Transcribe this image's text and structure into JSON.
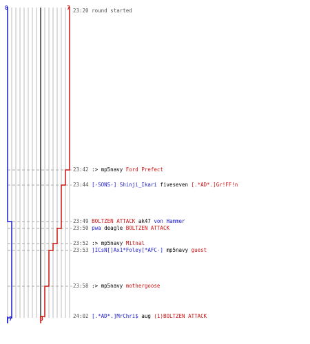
{
  "colors": {
    "blue": "#1a1acc",
    "red": "#cc1111",
    "gray": "#555555",
    "black": "#000000",
    "grid": "#bbbbbb",
    "dash": "#aaaaaa",
    "time": "#555555"
  },
  "scores": {
    "blue_start": "8",
    "red_start": "7",
    "blue_end": "7",
    "red_end": "0"
  },
  "events": [
    {
      "time": "23:20",
      "parts": [
        {
          "t": " round started",
          "c": "gray"
        }
      ]
    },
    {
      "time": "23:42",
      "parts": [
        {
          "t": " :> ",
          "c": "black"
        },
        {
          "t": "mp5navy ",
          "c": "black"
        },
        {
          "t": "Ford Prefect",
          "c": "red"
        }
      ]
    },
    {
      "time": "23:44",
      "parts": [
        {
          "t": " [-SONS-] Shinji_Ikari",
          "c": "blue"
        },
        {
          "t": " fiveseven ",
          "c": "black"
        },
        {
          "t": "[.*AD*.]Gr!FF!n",
          "c": "red"
        }
      ]
    },
    {
      "time": "23:49",
      "parts": [
        {
          "t": " BOLTZEN ATTACK",
          "c": "red"
        },
        {
          "t": " ak47 ",
          "c": "black"
        },
        {
          "t": "von Hammer",
          "c": "blue"
        }
      ]
    },
    {
      "time": "23:50",
      "parts": [
        {
          "t": " pwa",
          "c": "blue"
        },
        {
          "t": " deagle ",
          "c": "black"
        },
        {
          "t": "BOLTZEN ATTACK",
          "c": "red"
        }
      ]
    },
    {
      "time": "23:52",
      "parts": [
        {
          "t": " :> ",
          "c": "black"
        },
        {
          "t": "mp5navy ",
          "c": "black"
        },
        {
          "t": "Mitnal",
          "c": "red"
        }
      ]
    },
    {
      "time": "23:53",
      "parts": [
        {
          "t": " ]ICsN[]Ax1*Foley[*AFC-]",
          "c": "blue"
        },
        {
          "t": " mp5navy ",
          "c": "black"
        },
        {
          "t": "guest",
          "c": "red"
        }
      ]
    },
    {
      "time": "23:58",
      "parts": [
        {
          "t": " :> ",
          "c": "black"
        },
        {
          "t": "mp5navy ",
          "c": "black"
        },
        {
          "t": "mothergoose",
          "c": "red"
        }
      ]
    },
    {
      "time": "24:02",
      "parts": [
        {
          "t": " [.*AD*.]MrChri$",
          "c": "blue"
        },
        {
          "t": " aug ",
          "c": "black"
        },
        {
          "t": "(1)BOLTZEN ATTACK",
          "c": "red"
        }
      ]
    }
  ]
}
